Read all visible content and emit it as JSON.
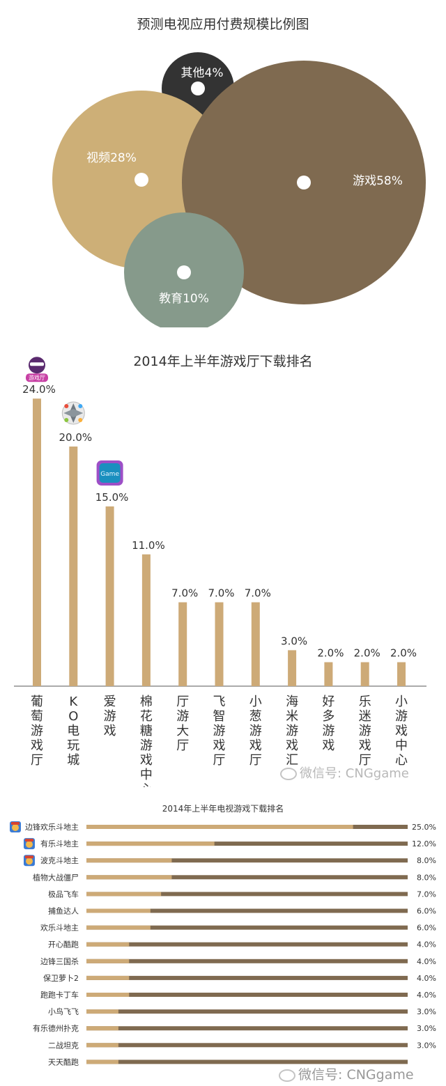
{
  "chart_data": [
    {
      "type": "pie",
      "title": "预测电视应用付费规模比例图",
      "slices": [
        {
          "label": "游戏",
          "value": 58,
          "display": "游戏58%",
          "color": "#7f6a50"
        },
        {
          "label": "视频",
          "value": 28,
          "display": "视频28%",
          "color": "#cdaf77"
        },
        {
          "label": "教育",
          "value": 10,
          "display": "教育10%",
          "color": "#869a8b"
        },
        {
          "label": "其他",
          "value": 4,
          "display": "其他4%",
          "color": "#333333"
        }
      ]
    },
    {
      "type": "bar",
      "title": "2014年上半年游戏厅下载排名",
      "categories": [
        "葡萄游戏厅",
        "KO电玩城",
        "爱游戏",
        "棉花糖游戏中心",
        "厅游大厅",
        "飞智游戏厅",
        "小葱游戏厅",
        "海米游戏汇",
        "好多游戏",
        "乐迷游戏厅",
        "小游戏中心"
      ],
      "values": [
        24.0,
        20.0,
        15.0,
        11.0,
        7.0,
        7.0,
        7.0,
        3.0,
        2.0,
        2.0,
        2.0
      ],
      "value_labels": [
        "24.0%",
        "20.0%",
        "15.0%",
        "11.0%",
        "7.0%",
        "7.0%",
        "7.0%",
        "3.0%",
        "2.0%",
        "2.0%",
        "2.0%"
      ],
      "bar_color": "#cdaa77",
      "icons": [
        "grape-hall-icon",
        "ko-arcade-icon",
        "love-game-icon"
      ],
      "icon_texts": [
        "游戏厅",
        "",
        "Game"
      ]
    },
    {
      "type": "bar",
      "orientation": "horizontal",
      "title": "2014年上半年电视游戏下载排名",
      "categories": [
        "边锋欢乐斗地主",
        "有乐斗地主",
        "波克斗地主",
        "植物大战僵尸",
        "极品飞车",
        "捕鱼达人",
        "欢乐斗地主",
        "开心酷跑",
        "边锋三国杀",
        "保卫萝卜2",
        "跑跑卡丁车",
        "小鸟飞飞",
        "有乐德州扑克",
        "二战坦克",
        "天天酷跑"
      ],
      "values": [
        25.0,
        12.0,
        8.0,
        8.0,
        7.0,
        6.0,
        6.0,
        4.0,
        4.0,
        4.0,
        4.0,
        3.0,
        3.0,
        3.0,
        3.0
      ],
      "value_labels": [
        "25.0%",
        "12.0%",
        "8.0%",
        "8.0%",
        "7.0%",
        "6.0%",
        "6.0%",
        "4.0%",
        "4.0%",
        "4.0%",
        "4.0%",
        "3.0%",
        "3.0%",
        "3.0%",
        ""
      ],
      "fill_color": "#cdaa77",
      "track_color": "#7f6a50",
      "icons": [
        "bianfeng-landlord-icon",
        "youle-landlord-icon",
        "boke-landlord-icon"
      ]
    }
  ],
  "watermark": {
    "text": "微信号: CNGgame",
    "text_bottom": "微信号: CNGgame"
  }
}
